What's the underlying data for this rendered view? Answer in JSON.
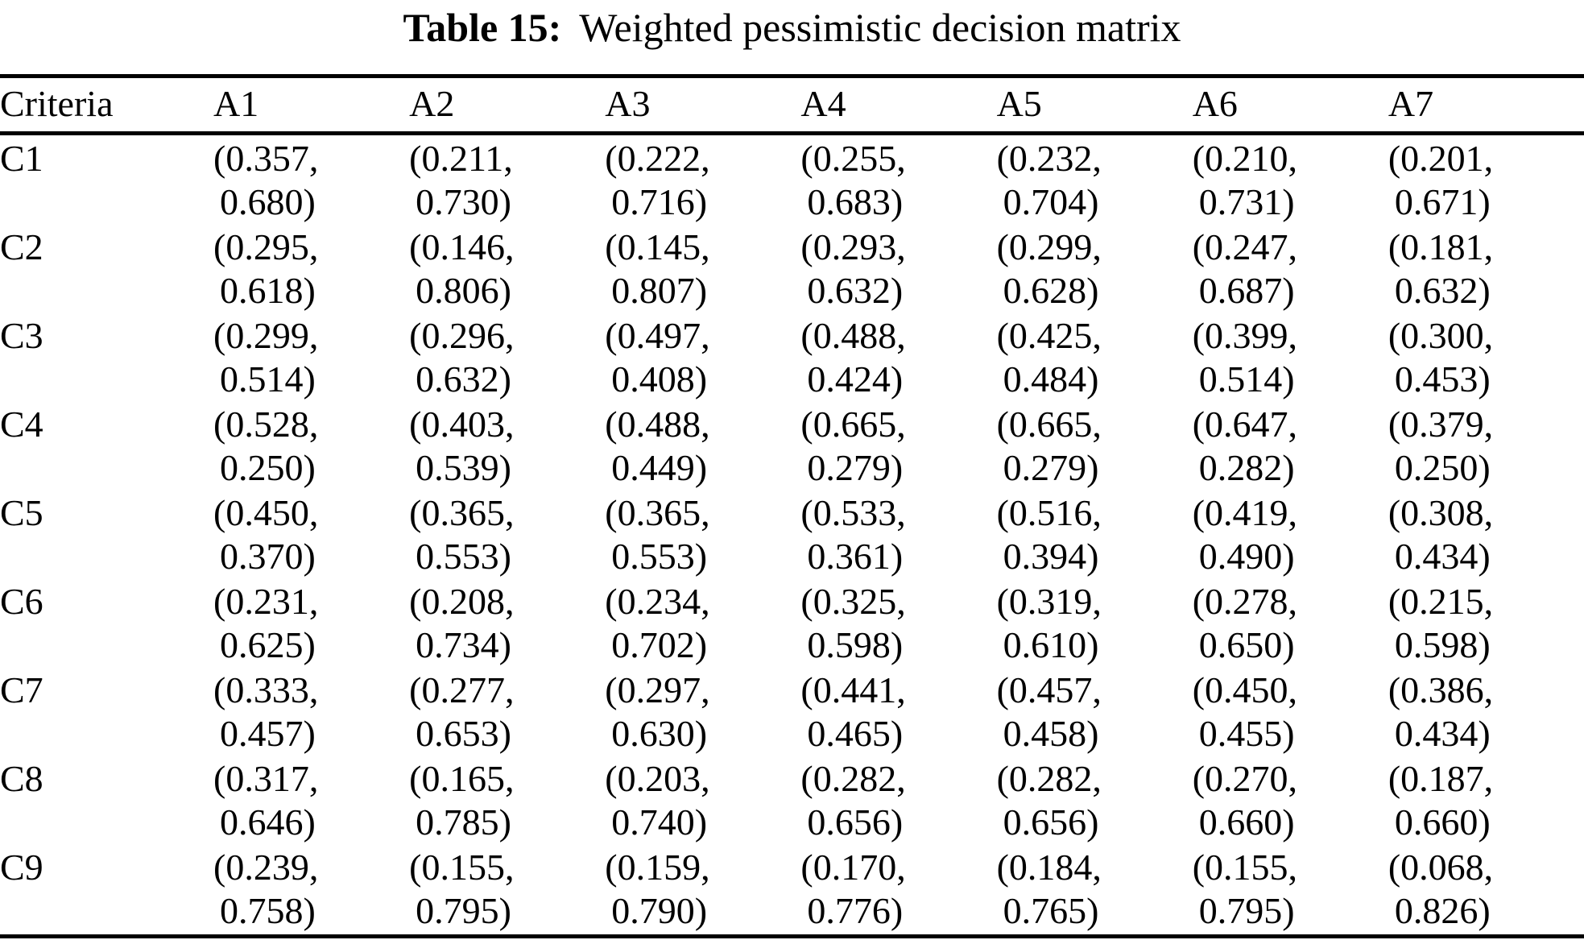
{
  "table": {
    "caption_label": "Table 15:",
    "caption_text": "Weighted pessimistic decision matrix",
    "columns": [
      "Criteria",
      "A1",
      "A2",
      "A3",
      "A4",
      "A5",
      "A6",
      "A7"
    ],
    "rows": [
      {
        "criterion": "C1",
        "cells": [
          [
            "(0.357,",
            "0.680)"
          ],
          [
            "(0.211,",
            "0.730)"
          ],
          [
            "(0.222,",
            "0.716)"
          ],
          [
            "(0.255,",
            "0.683)"
          ],
          [
            "(0.232,",
            "0.704)"
          ],
          [
            "(0.210,",
            "0.731)"
          ],
          [
            "(0.201,",
            "0.671)"
          ]
        ]
      },
      {
        "criterion": "C2",
        "cells": [
          [
            "(0.295,",
            "0.618)"
          ],
          [
            "(0.146,",
            "0.806)"
          ],
          [
            "(0.145,",
            "0.807)"
          ],
          [
            "(0.293,",
            "0.632)"
          ],
          [
            "(0.299,",
            "0.628)"
          ],
          [
            "(0.247,",
            "0.687)"
          ],
          [
            "(0.181,",
            "0.632)"
          ]
        ]
      },
      {
        "criterion": "C3",
        "cells": [
          [
            "(0.299,",
            "0.514)"
          ],
          [
            "(0.296,",
            "0.632)"
          ],
          [
            "(0.497,",
            "0.408)"
          ],
          [
            "(0.488,",
            "0.424)"
          ],
          [
            "(0.425,",
            "0.484)"
          ],
          [
            "(0.399,",
            "0.514)"
          ],
          [
            "(0.300,",
            "0.453)"
          ]
        ]
      },
      {
        "criterion": "C4",
        "cells": [
          [
            "(0.528,",
            "0.250)"
          ],
          [
            "(0.403,",
            "0.539)"
          ],
          [
            "(0.488,",
            "0.449)"
          ],
          [
            "(0.665,",
            "0.279)"
          ],
          [
            "(0.665,",
            "0.279)"
          ],
          [
            "(0.647,",
            "0.282)"
          ],
          [
            "(0.379,",
            "0.250)"
          ]
        ]
      },
      {
        "criterion": "C5",
        "cells": [
          [
            "(0.450,",
            "0.370)"
          ],
          [
            "(0.365,",
            "0.553)"
          ],
          [
            "(0.365,",
            "0.553)"
          ],
          [
            "(0.533,",
            "0.361)"
          ],
          [
            "(0.516,",
            "0.394)"
          ],
          [
            "(0.419,",
            "0.490)"
          ],
          [
            "(0.308,",
            "0.434)"
          ]
        ]
      },
      {
        "criterion": "C6",
        "cells": [
          [
            "(0.231,",
            "0.625)"
          ],
          [
            "(0.208,",
            "0.734)"
          ],
          [
            "(0.234,",
            "0.702)"
          ],
          [
            "(0.325,",
            "0.598)"
          ],
          [
            "(0.319,",
            "0.610)"
          ],
          [
            "(0.278,",
            "0.650)"
          ],
          [
            "(0.215,",
            "0.598)"
          ]
        ]
      },
      {
        "criterion": "C7",
        "cells": [
          [
            "(0.333,",
            "0.457)"
          ],
          [
            "(0.277,",
            "0.653)"
          ],
          [
            "(0.297,",
            "0.630)"
          ],
          [
            "(0.441,",
            "0.465)"
          ],
          [
            "(0.457,",
            "0.458)"
          ],
          [
            "(0.450,",
            "0.455)"
          ],
          [
            "(0.386,",
            "0.434)"
          ]
        ]
      },
      {
        "criterion": "C8",
        "cells": [
          [
            "(0.317,",
            "0.646)"
          ],
          [
            "(0.165,",
            "0.785)"
          ],
          [
            "(0.203,",
            "0.740)"
          ],
          [
            "(0.282,",
            "0.656)"
          ],
          [
            "(0.282,",
            "0.656)"
          ],
          [
            "(0.270,",
            "0.660)"
          ],
          [
            "(0.187,",
            "0.660)"
          ]
        ]
      },
      {
        "criterion": "C9",
        "cells": [
          [
            "(0.239,",
            "0.758)"
          ],
          [
            "(0.155,",
            "0.795)"
          ],
          [
            "(0.159,",
            "0.790)"
          ],
          [
            "(0.170,",
            "0.776)"
          ],
          [
            "(0.184,",
            "0.765)"
          ],
          [
            "(0.155,",
            "0.795)"
          ],
          [
            "(0.068,",
            "0.826)"
          ]
        ]
      }
    ]
  }
}
